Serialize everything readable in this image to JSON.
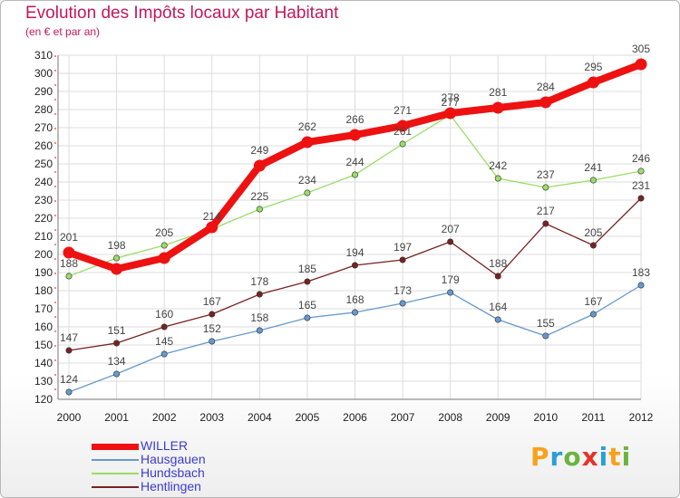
{
  "title": "Evolution des Impôts locaux par Habitant",
  "subtitle": "(en € et par an)",
  "logo": {
    "letters": [
      "P",
      "r",
      "o",
      "x",
      "i",
      "t",
      "i"
    ],
    "colors": [
      "#f7a21b",
      "#2a9fd8",
      "#6ab43e",
      "#e6332a",
      "#2a9fd8",
      "#f7a21b",
      "#6ab43e"
    ]
  },
  "chart_data": {
    "type": "line",
    "title": "Evolution des Impôts locaux par Habitant",
    "subtitle": "(en € et par an)",
    "xlabel": "",
    "ylabel": "",
    "x": [
      "2000",
      "2001",
      "2002",
      "2003",
      "2004",
      "2005",
      "2006",
      "2007",
      "2008",
      "2009",
      "2010",
      "2011",
      "2012"
    ],
    "ylim": [
      120,
      310
    ],
    "yticks": [
      120,
      130,
      140,
      150,
      160,
      170,
      180,
      190,
      200,
      210,
      220,
      230,
      240,
      250,
      260,
      270,
      280,
      290,
      300,
      310
    ],
    "grid": true,
    "legend": "bottom-left",
    "series": [
      {
        "name": "WILLER",
        "color": "#ee1111",
        "bold": true,
        "values": [
          201,
          192,
          198,
          215,
          249,
          262,
          266,
          271,
          278,
          281,
          284,
          295,
          305
        ],
        "labels": [
          "201",
          "",
          "",
          "",
          "249",
          "262",
          "266",
          "271",
          "278",
          "281",
          "284",
          "295",
          "305"
        ]
      },
      {
        "name": "Hausgauen",
        "color": "#6699cc",
        "values": [
          124,
          134,
          145,
          152,
          158,
          165,
          168,
          173,
          179,
          164,
          155,
          167,
          183
        ],
        "labels": [
          "124",
          "134",
          "145",
          "152",
          "158",
          "165",
          "168",
          "173",
          "179",
          "164",
          "155",
          "167",
          "183"
        ]
      },
      {
        "name": "Hundsbach",
        "color": "#99dd66",
        "values": [
          188,
          198,
          205,
          214,
          225,
          234,
          244,
          261,
          277,
          242,
          237,
          241,
          246
        ],
        "labels": [
          "188",
          "198",
          "205",
          "214",
          "225",
          "234",
          "244",
          "261",
          "277",
          "242",
          "237",
          "241",
          "246"
        ]
      },
      {
        "name": "Hentlingen",
        "color": "#772222",
        "values": [
          147,
          151,
          160,
          167,
          178,
          185,
          194,
          197,
          207,
          188,
          217,
          205,
          231
        ],
        "labels": [
          "147",
          "151",
          "160",
          "167",
          "178",
          "185",
          "194",
          "197",
          "207",
          "188",
          "217",
          "205",
          "231"
        ]
      }
    ]
  }
}
